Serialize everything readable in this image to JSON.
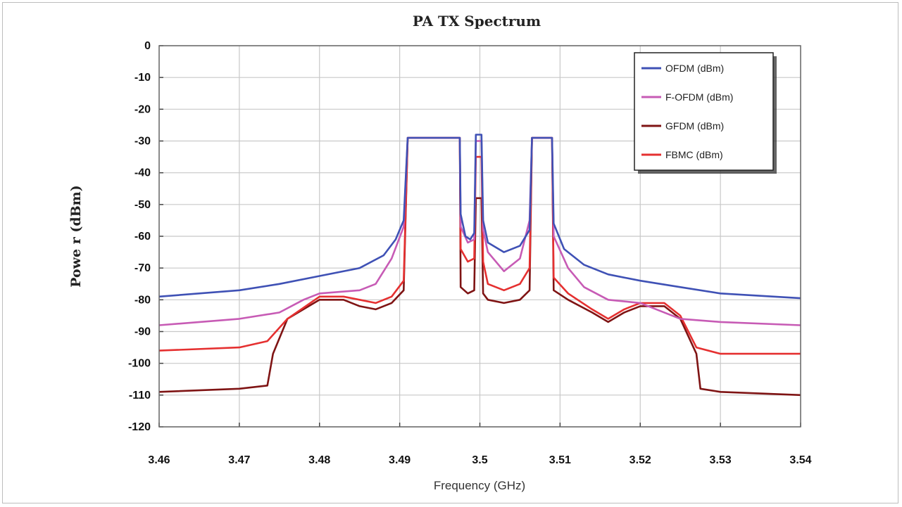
{
  "chart_data": {
    "type": "line",
    "title": "PA TX Spectrum",
    "xlabel": "Frequency (GHz)",
    "ylabel": "Powe r (dBm)",
    "xlim": [
      3.46,
      3.54
    ],
    "ylim": [
      -120,
      0
    ],
    "x_ticks": [
      "3.46",
      "3.47",
      "3.48",
      "3.49",
      "3.5",
      "3.51",
      "3.52",
      "3.53",
      "3.54"
    ],
    "y_ticks": [
      "0",
      "-10",
      "-20",
      "-30",
      "-40",
      "-50",
      "-60",
      "-70",
      "-80",
      "-90",
      "-100",
      "-110",
      "-120"
    ],
    "grid": true,
    "legend_position": "top-right",
    "series": [
      {
        "name": "OFDM (dBm)",
        "color": "#3f51b5",
        "points": [
          [
            3.46,
            -79
          ],
          [
            3.47,
            -77
          ],
          [
            3.475,
            -75
          ],
          [
            3.48,
            -72.5
          ],
          [
            3.485,
            -70
          ],
          [
            3.488,
            -66
          ],
          [
            3.4895,
            -61
          ],
          [
            3.4905,
            -55
          ],
          [
            3.491,
            -29
          ],
          [
            3.4975,
            -29
          ],
          [
            3.4976,
            -53
          ],
          [
            3.4982,
            -60
          ],
          [
            3.4988,
            -61
          ],
          [
            3.4993,
            -59
          ],
          [
            3.4995,
            -28
          ],
          [
            3.5002,
            -28
          ],
          [
            3.5004,
            -55
          ],
          [
            3.501,
            -62
          ],
          [
            3.503,
            -65
          ],
          [
            3.505,
            -63
          ],
          [
            3.5062,
            -58
          ],
          [
            3.5065,
            -29
          ],
          [
            3.509,
            -29
          ],
          [
            3.5092,
            -56
          ],
          [
            3.5105,
            -64
          ],
          [
            3.513,
            -69
          ],
          [
            3.516,
            -72
          ],
          [
            3.52,
            -74
          ],
          [
            3.525,
            -76
          ],
          [
            3.53,
            -78
          ],
          [
            3.54,
            -79.5
          ]
        ]
      },
      {
        "name": "F-OFDM (dBm)",
        "color": "#c75bb5",
        "points": [
          [
            3.46,
            -88
          ],
          [
            3.47,
            -86
          ],
          [
            3.475,
            -84
          ],
          [
            3.478,
            -80
          ],
          [
            3.48,
            -78
          ],
          [
            3.485,
            -77
          ],
          [
            3.487,
            -75
          ],
          [
            3.489,
            -67
          ],
          [
            3.4905,
            -57
          ],
          [
            3.491,
            -29
          ],
          [
            3.4975,
            -29
          ],
          [
            3.4976,
            -57
          ],
          [
            3.4985,
            -62
          ],
          [
            3.4993,
            -61
          ],
          [
            3.4995,
            -30
          ],
          [
            3.5002,
            -30
          ],
          [
            3.5004,
            -58
          ],
          [
            3.501,
            -65
          ],
          [
            3.503,
            -71
          ],
          [
            3.505,
            -67
          ],
          [
            3.5062,
            -55
          ],
          [
            3.5065,
            -29
          ],
          [
            3.509,
            -29
          ],
          [
            3.5092,
            -60
          ],
          [
            3.511,
            -70
          ],
          [
            3.513,
            -76
          ],
          [
            3.516,
            -80
          ],
          [
            3.52,
            -81
          ],
          [
            3.522,
            -83
          ],
          [
            3.525,
            -86
          ],
          [
            3.53,
            -87
          ],
          [
            3.54,
            -88
          ]
        ]
      },
      {
        "name": "GFDM (dBm)",
        "color": "#7f1414",
        "points": [
          [
            3.46,
            -109
          ],
          [
            3.47,
            -108
          ],
          [
            3.4735,
            -107
          ],
          [
            3.4742,
            -97
          ],
          [
            3.476,
            -86
          ],
          [
            3.48,
            -80
          ],
          [
            3.483,
            -80
          ],
          [
            3.485,
            -82
          ],
          [
            3.487,
            -83
          ],
          [
            3.489,
            -81
          ],
          [
            3.4905,
            -77
          ],
          [
            3.491,
            -29
          ],
          [
            3.4975,
            -29
          ],
          [
            3.4976,
            -76
          ],
          [
            3.4985,
            -78
          ],
          [
            3.4993,
            -77
          ],
          [
            3.4995,
            -48
          ],
          [
            3.5002,
            -48
          ],
          [
            3.5004,
            -78
          ],
          [
            3.501,
            -80
          ],
          [
            3.503,
            -81
          ],
          [
            3.505,
            -80
          ],
          [
            3.5062,
            -77
          ],
          [
            3.5065,
            -29
          ],
          [
            3.509,
            -29
          ],
          [
            3.5092,
            -77
          ],
          [
            3.511,
            -80
          ],
          [
            3.514,
            -84
          ],
          [
            3.516,
            -87
          ],
          [
            3.518,
            -84
          ],
          [
            3.52,
            -82
          ],
          [
            3.523,
            -82
          ],
          [
            3.525,
            -86
          ],
          [
            3.527,
            -97
          ],
          [
            3.5275,
            -108
          ],
          [
            3.53,
            -109
          ],
          [
            3.54,
            -110
          ]
        ]
      },
      {
        "name": "FBMC (dBm)",
        "color": "#e53030",
        "points": [
          [
            3.46,
            -96
          ],
          [
            3.47,
            -95
          ],
          [
            3.4735,
            -93
          ],
          [
            3.476,
            -86
          ],
          [
            3.48,
            -79
          ],
          [
            3.483,
            -79
          ],
          [
            3.485,
            -80
          ],
          [
            3.487,
            -81
          ],
          [
            3.489,
            -79
          ],
          [
            3.4905,
            -74
          ],
          [
            3.491,
            -29
          ],
          [
            3.4975,
            -29
          ],
          [
            3.4976,
            -64
          ],
          [
            3.4985,
            -68
          ],
          [
            3.4993,
            -67
          ],
          [
            3.4995,
            -35
          ],
          [
            3.5002,
            -35
          ],
          [
            3.5004,
            -68
          ],
          [
            3.501,
            -75
          ],
          [
            3.503,
            -77
          ],
          [
            3.505,
            -75
          ],
          [
            3.5062,
            -70
          ],
          [
            3.5065,
            -29
          ],
          [
            3.509,
            -29
          ],
          [
            3.5092,
            -73
          ],
          [
            3.511,
            -78
          ],
          [
            3.514,
            -83
          ],
          [
            3.516,
            -86
          ],
          [
            3.518,
            -83
          ],
          [
            3.52,
            -81
          ],
          [
            3.523,
            -81
          ],
          [
            3.525,
            -85
          ],
          [
            3.527,
            -95
          ],
          [
            3.53,
            -97
          ],
          [
            3.54,
            -97
          ]
        ]
      }
    ]
  }
}
